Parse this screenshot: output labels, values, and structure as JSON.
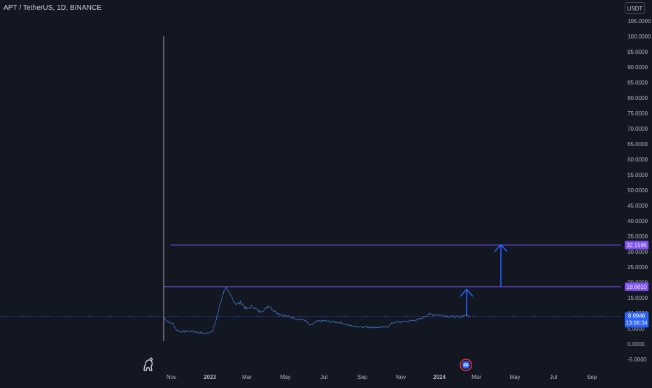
{
  "header": {
    "symbol": "APT / TetherUS, 1D, BINANCE",
    "currency": "USDT"
  },
  "icons": {
    "logo": "dinosaur-logo-icon",
    "event": "earnings-event-icon"
  },
  "colors": {
    "background": "#131722",
    "price_line": "#3d6fb5",
    "horizontal_line": "#7b4ff0",
    "arrow": "#2962ff",
    "last_price_badge": "#2962ff",
    "axis_text": "#b2b5be"
  },
  "chart_data": {
    "type": "line",
    "title": "APT / TetherUS, 1D, BINANCE",
    "ylim": [
      -5,
      105
    ],
    "y_ticks": [
      "-5.0000",
      "0.0000",
      "5.0000",
      "10.0000",
      "15.0000",
      "20.0000",
      "25.0000",
      "30.0000",
      "35.0000",
      "40.0000",
      "45.0000",
      "50.0000",
      "55.0000",
      "60.0000",
      "65.0000",
      "70.0000",
      "75.0000",
      "80.0000",
      "85.0000",
      "90.0000",
      "95.0000",
      "100.0000",
      "105.0000"
    ],
    "x_ticks": [
      "Nov",
      "2023",
      "Mar",
      "May",
      "Jul",
      "Sep",
      "Nov",
      "2024",
      "Mar",
      "May",
      "Jul",
      "Sep"
    ],
    "series": [
      {
        "x": [
          "2022-10-19",
          "2022-10-21",
          "2022-10-24",
          "2022-10-28",
          "2022-11-03",
          "2022-11-09",
          "2022-11-12",
          "2022-11-20",
          "2022-12-01",
          "2022-12-10",
          "2022-12-20",
          "2022-12-26",
          "2022-12-30",
          "2023-01-05",
          "2023-01-10",
          "2023-01-15",
          "2023-01-20",
          "2023-01-26",
          "2023-01-30",
          "2023-02-05",
          "2023-02-12",
          "2023-02-20",
          "2023-02-28",
          "2023-03-10",
          "2023-03-20",
          "2023-03-30",
          "2023-04-05",
          "2023-04-12",
          "2023-04-20",
          "2023-04-30",
          "2023-05-10",
          "2023-05-20",
          "2023-06-01",
          "2023-06-10",
          "2023-06-20",
          "2023-07-01",
          "2023-07-15",
          "2023-07-30",
          "2023-08-10",
          "2023-08-20",
          "2023-09-01",
          "2023-09-15",
          "2023-10-01",
          "2023-10-10",
          "2023-10-20",
          "2023-11-01",
          "2023-11-15",
          "2023-12-01",
          "2023-12-15",
          "2024-01-01",
          "2024-01-15",
          "2024-02-01",
          "2024-02-12",
          "2024-02-18"
        ],
        "values": [
          9.5,
          8.5,
          7.6,
          7.0,
          6.6,
          4.6,
          4.2,
          4.0,
          4.2,
          3.9,
          3.5,
          3.3,
          3.7,
          4.3,
          7.0,
          11.0,
          15.0,
          18.6,
          16.6,
          15.0,
          13.0,
          13.5,
          11.3,
          12.3,
          10.5,
          11.3,
          12.6,
          10.9,
          10.0,
          9.1,
          8.7,
          8.2,
          7.7,
          5.9,
          7.3,
          7.5,
          7.2,
          6.9,
          6.0,
          5.7,
          5.6,
          5.5,
          5.4,
          5.6,
          7.0,
          7.1,
          7.5,
          8.0,
          9.6,
          9.5,
          9.0,
          8.7,
          9.5,
          8.99
        ]
      }
    ],
    "horizontal_lines": [
      {
        "price": 32.1596,
        "label": "32.1596"
      },
      {
        "price": 18.601,
        "label": "18.6010"
      }
    ],
    "last_price": {
      "value": "8.9946",
      "countdown": "13:06:34"
    },
    "grid": false,
    "legend": "none"
  }
}
